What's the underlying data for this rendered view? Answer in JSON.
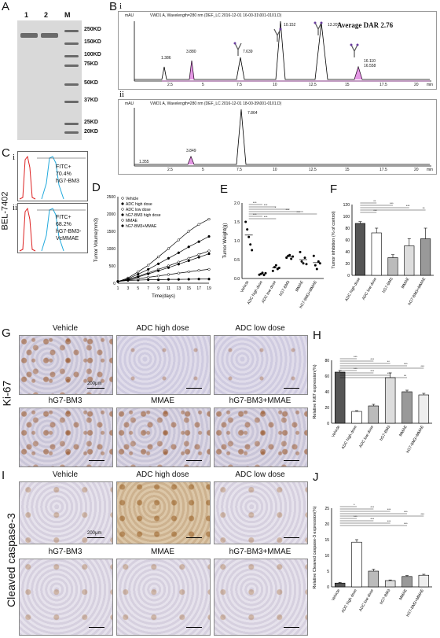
{
  "panels": {
    "A": "A",
    "B": "B",
    "C": "C",
    "D": "D",
    "E": "E",
    "F": "F",
    "G": "G",
    "H": "H",
    "I": "I",
    "J": "J"
  },
  "gel": {
    "lanes": [
      "1",
      "2",
      "M"
    ],
    "markers": [
      "250KD",
      "150KD",
      "100KD",
      "75KD",
      "50KD",
      "37KD",
      "25KD",
      "20KD"
    ]
  },
  "hplc": {
    "i_label": "i",
    "ii_label": "ii",
    "i_header": "VWD1 A, Wavelength=280 nm (DEF_LC 2016-12-01 16-00-31\\001-0101.D)",
    "ii_header": "VWD1 A, Wavelength=280 nm (DEF_LC 2016-12-01 18-00-39\\001-0101.D)",
    "unit": "mAU",
    "avg_dar": "Average DAR 2.76",
    "x_ticks": [
      "2.5",
      "5",
      "7.5",
      "10",
      "12.5",
      "15",
      "17.5",
      "20"
    ],
    "x_unit": "min",
    "i_peaks": [
      "1.386",
      "3.880",
      "7.639",
      "10.152",
      "13.207",
      "16.110",
      "16.558"
    ],
    "ii_peaks": [
      "1.355",
      "3.849",
      "7.864"
    ]
  },
  "flow": {
    "cell_line": "BEL-7402",
    "i_label": "i",
    "ii_label": "ii",
    "i_text": [
      "FITC+",
      "70.4%",
      "hG7-BM3"
    ],
    "ii_text": [
      "FITC+",
      "68.2%",
      "hG7-BM3-",
      "VcMMAE"
    ]
  },
  "chart_data": [
    {
      "type": "line",
      "panel": "D",
      "ylabel": "Tumor Volume(mm3)",
      "xlabel": "Time(days)",
      "x": [
        1,
        3,
        5,
        7,
        9,
        11,
        13,
        15,
        17,
        19
      ],
      "ylim": [
        0,
        2500
      ],
      "yticks": [
        "0",
        "500",
        "1000",
        "1500",
        "2000",
        "2500"
      ],
      "xticks": [
        "1",
        "3",
        "5",
        "7",
        "9",
        "11",
        "13",
        "15",
        "17",
        "19"
      ],
      "legend": [
        "Vehicle",
        "ADC high dose",
        "ADC low dose",
        "hG7-BM3 high dose",
        "MMAE",
        "hG7-BM3+MMAE"
      ],
      "series": [
        {
          "name": "Vehicle",
          "values": [
            50,
            150,
            330,
            520,
            760,
            1000,
            1250,
            1500,
            1700,
            1850
          ]
        },
        {
          "name": "ADC high dose",
          "values": [
            50,
            80,
            90,
            100,
            100,
            110,
            110,
            115,
            120,
            120
          ]
        },
        {
          "name": "ADC low dose",
          "values": [
            50,
            90,
            130,
            170,
            210,
            250,
            290,
            330,
            370,
            400
          ]
        },
        {
          "name": "hG7-BM3 high dose",
          "values": [
            50,
            130,
            260,
            400,
            560,
            720,
            880,
            1050,
            1200,
            1350
          ]
        },
        {
          "name": "MMAE",
          "values": [
            50,
            110,
            200,
            300,
            400,
            500,
            610,
            720,
            830,
            930
          ]
        },
        {
          "name": "hG7-BM3+MMAE",
          "values": [
            50,
            100,
            180,
            270,
            360,
            450,
            550,
            650,
            750,
            850
          ]
        }
      ]
    },
    {
      "type": "scatter",
      "panel": "E",
      "ylabel": "Tumor Weight(g)",
      "ylim": [
        0,
        2.0
      ],
      "yticks": [
        "0.0",
        "0.5",
        "1.0",
        "1.5",
        "2.0"
      ],
      "categories": [
        "Vehicle",
        "ADC high dose",
        "ADC low dose",
        "hG7-BM3",
        "MMAE",
        "hG7-BM3+MMAE"
      ],
      "means": [
        1.15,
        0.12,
        0.28,
        0.58,
        0.5,
        0.42
      ],
      "points": [
        [
          1.5,
          1.3,
          1.1,
          0.9,
          0.75
        ],
        [
          0.1,
          0.12,
          0.15,
          0.09,
          0.14
        ],
        [
          0.2,
          0.3,
          0.35,
          0.25,
          0.28
        ],
        [
          0.55,
          0.6,
          0.62,
          0.52,
          0.58
        ],
        [
          0.7,
          0.45,
          0.4,
          0.55,
          0.38
        ],
        [
          0.6,
          0.35,
          0.25,
          0.45,
          0.4
        ]
      ],
      "significance": [
        "***",
        "***",
        "*",
        "***",
        "***",
        "***",
        "***"
      ]
    },
    {
      "type": "bar",
      "panel": "F",
      "ylabel": "Tumor inhibition (% of control)",
      "ylim": [
        0,
        120
      ],
      "yticks": [
        "0",
        "20",
        "40",
        "60",
        "80",
        "100",
        "120"
      ],
      "categories": [
        "ADC high dose",
        "ADC low dose",
        "hG7-BM3",
        "MMAE",
        "hG7-BM3+MMAE"
      ],
      "values": [
        88,
        72,
        30,
        50,
        62
      ],
      "errors": [
        3,
        8,
        5,
        12,
        18
      ],
      "significance": [
        "**",
        "***",
        "***",
        "**",
        "***"
      ]
    },
    {
      "type": "bar",
      "panel": "H",
      "ylabel": "Relative Ki67 expression(%)",
      "ylim": [
        0,
        80
      ],
      "yticks": [
        "0",
        "20",
        "40",
        "60",
        "80"
      ],
      "categories": [
        "Vehicle",
        "ADC high dose",
        "ADC low dose",
        "hG7-BM3",
        "MMAE",
        "hG7-BM3+MMAE"
      ],
      "values": [
        65,
        15,
        22,
        58,
        40,
        36
      ],
      "errors": [
        2,
        1,
        2,
        6,
        2,
        2
      ],
      "significance": [
        "***",
        "***",
        "**",
        "***",
        "***",
        "***",
        "***",
        "***",
        "**"
      ]
    },
    {
      "type": "bar",
      "panel": "J",
      "ylabel": "Relative Cleaved caspase-3 expression(%)",
      "ylim": [
        0,
        25
      ],
      "yticks": [
        "0",
        "5",
        "10",
        "15",
        "20",
        "25"
      ],
      "categories": [
        "Vehicle",
        "ADC high dose",
        "ADC low dose",
        "hG7-BM3",
        "MMAE",
        "hG7-BM3+MMAE"
      ],
      "values": [
        1.2,
        14.2,
        5.0,
        2.0,
        3.3,
        3.7
      ],
      "errors": [
        0.2,
        0.8,
        0.6,
        0.2,
        0.3,
        0.3
      ],
      "significance": [
        "*",
        "***",
        "***",
        "***",
        "***",
        "***",
        "***",
        "***",
        "***"
      ]
    }
  ],
  "ihc": {
    "ki67_label": "Ki-67",
    "cc3_label": "Cleaved caspase-3",
    "scale": "200μm",
    "titles": [
      "Vehicle",
      "ADC high dose",
      "ADC low dose",
      "hG7-BM3",
      "MMAE",
      "hG7-BM3+MMAE"
    ]
  },
  "colors": {
    "vehicle": "#000000",
    "peak_marker": "#cc33cc",
    "fitc_control": "#dd2222",
    "fitc_sample": "#22aadd"
  }
}
